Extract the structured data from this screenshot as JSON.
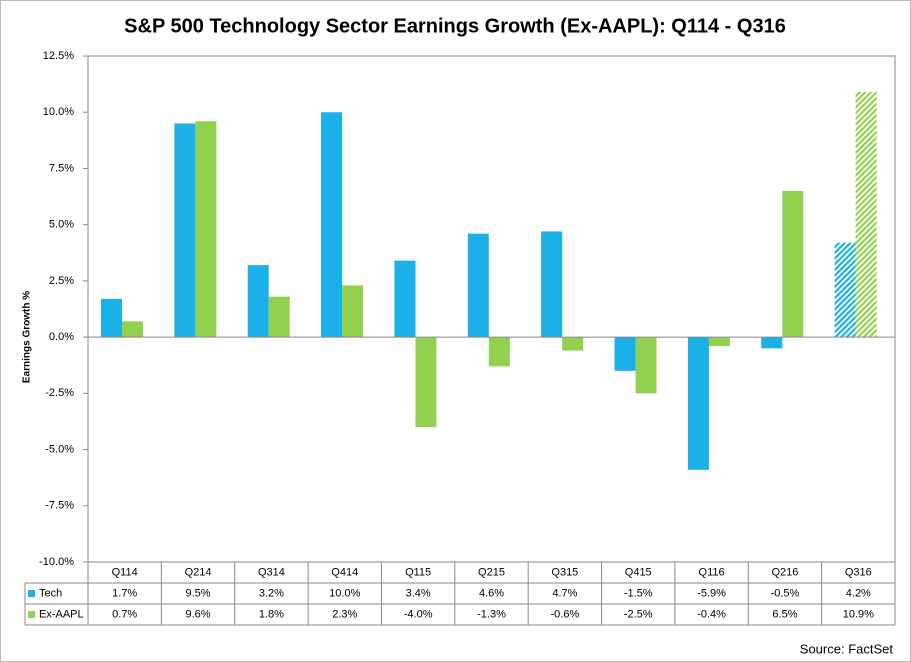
{
  "chart_data": {
    "type": "bar",
    "title": "S&P 500 Technology Sector Earnings Growth (Ex-AAPL): Q114 - Q316",
    "y_label": "Earnings Growth %",
    "source": "Source: FactSet",
    "categories": [
      "Q114",
      "Q214",
      "Q314",
      "Q414",
      "Q115",
      "Q215",
      "Q315",
      "Q415",
      "Q116",
      "Q216",
      "Q316"
    ],
    "series": [
      {
        "name": "Tech",
        "color": "#1cb0e8",
        "values": [
          1.7,
          9.5,
          3.2,
          10.0,
          3.4,
          4.6,
          4.7,
          -1.5,
          -5.9,
          -0.5,
          4.2
        ],
        "value_labels": [
          "1.7%",
          "9.5%",
          "3.2%",
          "10.0%",
          "3.4%",
          "4.6%",
          "4.7%",
          "-1.5%",
          "-5.9%",
          "-0.5%",
          "4.2%"
        ]
      },
      {
        "name": "Ex-AAPL",
        "color": "#92d050",
        "values": [
          0.7,
          9.6,
          1.8,
          2.3,
          -4.0,
          -1.3,
          -0.6,
          -2.5,
          -0.4,
          6.5,
          10.9
        ],
        "value_labels": [
          "0.7%",
          "9.6%",
          "1.8%",
          "2.3%",
          "-4.0%",
          "-1.3%",
          "-0.6%",
          "-2.5%",
          "-0.4%",
          "6.5%",
          "10.9%"
        ]
      }
    ],
    "hatched": [
      false,
      false,
      false,
      false,
      false,
      false,
      false,
      false,
      false,
      false,
      true
    ],
    "ylim": [
      -10,
      12.5
    ],
    "yticks": [
      {
        "value": -10,
        "label": "-10.0%"
      },
      {
        "value": -7.5,
        "label": "-7.5%"
      },
      {
        "value": -5,
        "label": "-5.0%"
      },
      {
        "value": -2.5,
        "label": "-2.5%"
      },
      {
        "value": 0,
        "label": "0.0%"
      },
      {
        "value": 2.5,
        "label": "2.5%"
      },
      {
        "value": 5,
        "label": "5.0%"
      },
      {
        "value": 7.5,
        "label": "7.5%"
      },
      {
        "value": 10,
        "label": "10.0%"
      },
      {
        "value": 12.5,
        "label": "12.5%"
      }
    ],
    "grid": false
  }
}
